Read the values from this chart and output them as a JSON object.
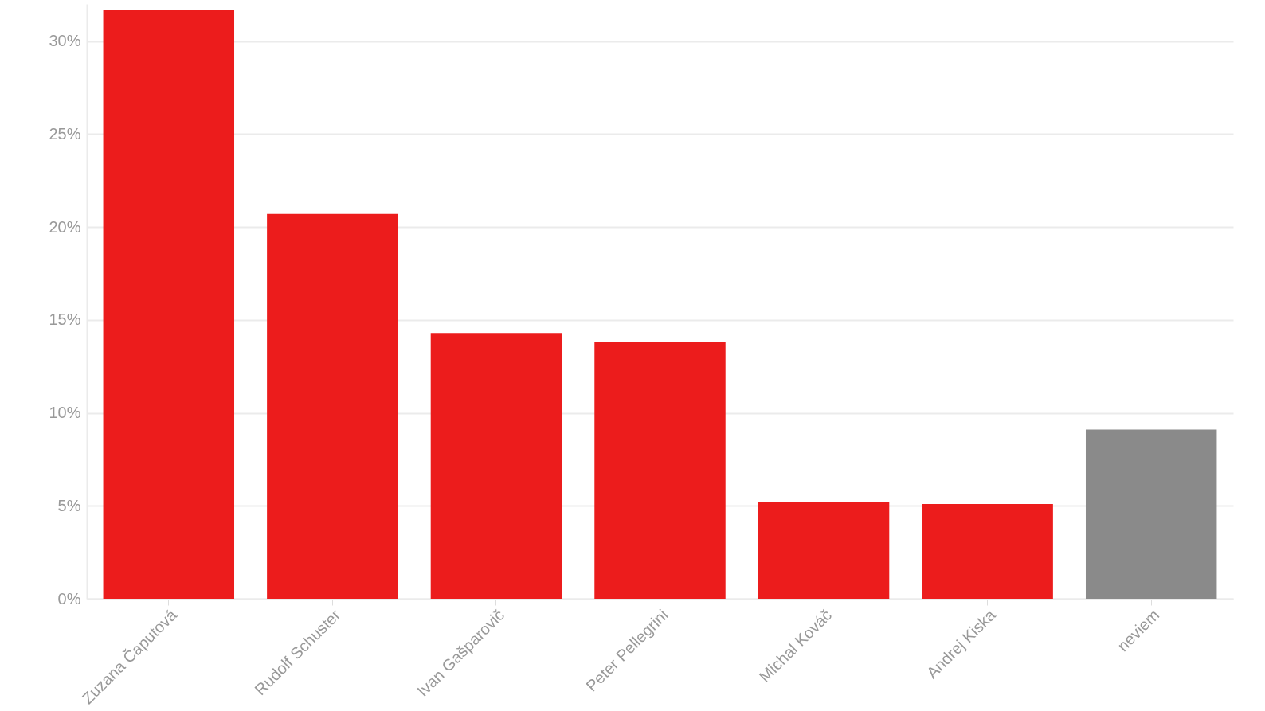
{
  "chart_data": {
    "type": "bar",
    "categories": [
      "Zuzana Čaputová",
      "Rudolf Schuster",
      "Ivan Gašparovič",
      "Peter Pellegrini",
      "Michal Kováč",
      "Andrej Kiska",
      "neviem"
    ],
    "values": [
      31.7,
      20.7,
      14.3,
      13.8,
      5.2,
      5.1,
      9.1
    ],
    "colors": [
      "#ec1c1c",
      "#ec1c1c",
      "#ec1c1c",
      "#ec1c1c",
      "#ec1c1c",
      "#ec1c1c",
      "#8a8a8a"
    ],
    "ylim": [
      0,
      32
    ],
    "yticks": [
      {
        "value": 0,
        "label": "0%"
      },
      {
        "value": 5,
        "label": "5%"
      },
      {
        "value": 10,
        "label": "10%"
      },
      {
        "value": 15,
        "label": "15%"
      },
      {
        "value": 20,
        "label": "20%"
      },
      {
        "value": 25,
        "label": "25%"
      },
      {
        "value": 30,
        "label": "30%"
      }
    ],
    "grid": "y"
  }
}
